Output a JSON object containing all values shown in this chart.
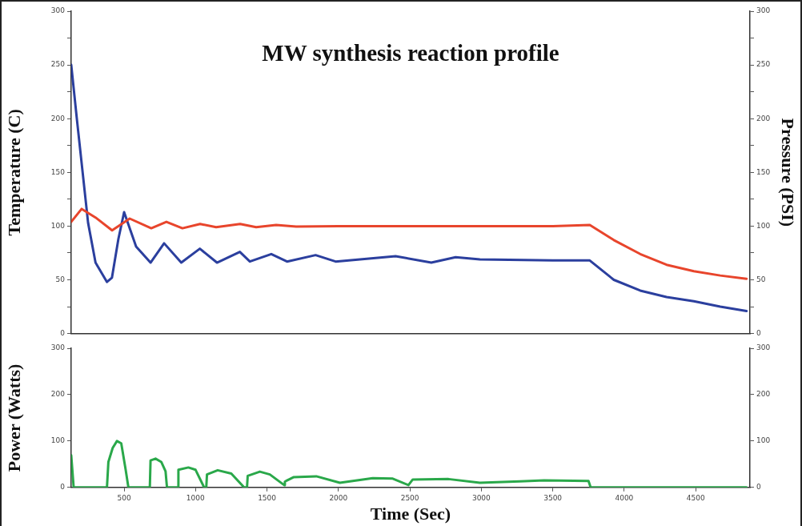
{
  "chart_data": [
    {
      "type": "line",
      "title": "MW synthesis reaction profile",
      "ylabel": "Temperature (C)",
      "y2label": "Pressure (PSI)",
      "xlim": [
        130,
        4880
      ],
      "ylim": [
        0,
        300
      ],
      "y2lim": [
        0,
        300
      ],
      "yticks": [
        0,
        {
          "value": 25,
          "label": null
        },
        50,
        {
          "value": 75,
          "label": null
        },
        100,
        {
          "value": 125,
          "label": null
        },
        150,
        {
          "value": 175,
          "label": null
        },
        200,
        {
          "value": 225,
          "label": null
        },
        250,
        {
          "value": 275,
          "label": null
        },
        300
      ],
      "y2ticks": [
        0,
        {
          "value": 25,
          "label": null
        },
        50,
        {
          "value": 75,
          "label": null
        },
        100,
        {
          "value": 125,
          "label": null
        },
        150,
        {
          "value": 175,
          "label": null
        },
        200,
        {
          "value": 225,
          "label": null
        },
        250,
        {
          "value": 275,
          "label": null
        },
        300
      ],
      "tick_labels": "y",
      "grid": false,
      "legend": false,
      "marker": "none",
      "line_style": "solid",
      "series": [
        {
          "color": "#e8452c",
          "x": [
            130,
            203,
            300,
            416,
            539,
            690,
            796,
            908,
            1032,
            1144,
            1312,
            1424,
            1564,
            1704,
            2000,
            2500,
            3000,
            3500,
            3759,
            3927,
            4112,
            4296,
            4487,
            4672,
            4856
          ],
          "values": [
            104,
            116,
            108,
            96,
            107,
            98,
            104,
            98,
            102,
            99,
            102,
            99,
            101,
            99.5,
            100,
            100,
            100,
            100,
            101,
            87,
            74,
            64,
            58,
            54,
            51
          ]
        },
        {
          "color": "#2b3f9e",
          "x": [
            130,
            170,
            248,
            300,
            380,
            415,
            460,
            500,
            584,
            685,
            780,
            900,
            1030,
            1150,
            1310,
            1380,
            1530,
            1640,
            1840,
            1980,
            2400,
            2650,
            2820,
            2990,
            3500,
            3759,
            3927,
            4112,
            4296,
            4487,
            4672,
            4856
          ],
          "values": [
            250,
            199,
            103,
            66,
            48,
            52,
            88,
            113,
            81,
            66,
            84,
            66,
            79,
            66,
            76,
            67,
            74,
            67,
            73,
            67,
            72,
            66,
            71,
            69,
            68,
            68,
            50,
            40,
            34,
            30,
            25,
            21
          ]
        }
      ]
    },
    {
      "type": "line",
      "ylabel": "Power (Watts)",
      "xlabel": "Time (Sec)",
      "xlim": [
        130,
        4880
      ],
      "xticks": [
        500,
        1000,
        1500,
        2000,
        2500,
        3000,
        3500,
        4000,
        4500
      ],
      "ylim": [
        0,
        300
      ],
      "yticks": [
        0,
        100,
        200,
        300
      ],
      "y2lim": [
        0,
        300
      ],
      "y2ticks": [
        0,
        100,
        200,
        300
      ],
      "grid": false,
      "legend": false,
      "marker": "none",
      "line_style": "solid",
      "series": [
        {
          "color": "#2aa84a",
          "x": [
            130,
            147,
            380,
            390,
            420,
            450,
            480,
            510,
            530,
            680,
            685,
            720,
            760,
            790,
            800,
            875,
            880,
            950,
            1000,
            1060,
            1075,
            1080,
            1155,
            1250,
            1340,
            1360,
            1365,
            1450,
            1520,
            1620,
            1625,
            1640,
            1685,
            1845,
            2010,
            2240,
            2380,
            2490,
            2520,
            2770,
            2990,
            3270,
            3440,
            3750,
            3765,
            4856
          ],
          "values": [
            69,
            0,
            0,
            55,
            85,
            100,
            95,
            40,
            0,
            0,
            58,
            62,
            55,
            35,
            0,
            0,
            38,
            43,
            38,
            0,
            0,
            28,
            37,
            30,
            0,
            0,
            25,
            34,
            28,
            5,
            12,
            15,
            22,
            24,
            10,
            20,
            19,
            5,
            17,
            18,
            10,
            13,
            15,
            14,
            0,
            0
          ]
        }
      ]
    }
  ]
}
